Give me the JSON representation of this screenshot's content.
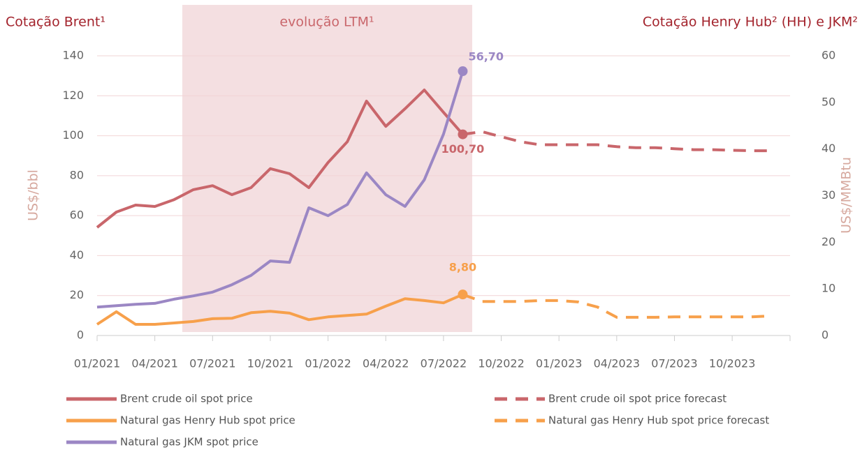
{
  "chart_data": {
    "type": "line",
    "title": "Cotação Brent¹",
    "title_right": "Cotação Henry Hub² (HH) e JKM²",
    "annotation": "evolução LTM¹",
    "y_label": "US$/bbl",
    "y2_label": "US$/MMBtu",
    "categories": [
      "01/2021",
      null,
      null,
      "04/2021",
      null,
      null,
      "07/2021",
      null,
      null,
      "10/2021",
      null,
      null,
      "01/2022",
      null,
      null,
      "04/2022",
      null,
      null,
      "07/2022",
      null,
      null,
      "10/2022",
      null,
      null,
      "01/2023",
      null,
      null,
      "04/2023",
      null,
      null,
      "07/2023",
      null,
      null,
      "10/2023",
      null,
      null
    ],
    "ylim": [
      0,
      140
    ],
    "yticks": [
      0,
      20,
      40,
      60,
      80,
      100,
      120,
      140
    ],
    "y2lim": [
      0,
      60
    ],
    "y2ticks": [
      0,
      10,
      20,
      30,
      40,
      50,
      60
    ],
    "grid": true,
    "series": [
      {
        "name": "Brent crude oil spot price",
        "color": "#c9666b",
        "dashed": false,
        "values": [
          54.1,
          61.8,
          65.3,
          64.6,
          68,
          73,
          75,
          70.5,
          74,
          83.5,
          81,
          74,
          86.6,
          97,
          117.3,
          104.7,
          113.5,
          122.9,
          111.7,
          100.7,
          null,
          null,
          null,
          null,
          null,
          null,
          null,
          null,
          null,
          null,
          null,
          null,
          null,
          null,
          null,
          null
        ],
        "value_labels": [
          null,
          null,
          null,
          null,
          null,
          null,
          null,
          null,
          null,
          null,
          null,
          null,
          null,
          null,
          null,
          null,
          null,
          null,
          null,
          "100,70",
          null,
          null,
          null,
          null,
          null,
          null,
          null,
          null,
          null,
          null,
          null,
          null,
          null,
          null,
          null,
          null
        ]
      },
      {
        "name": "Natural gas Henry Hub spot price",
        "color": "#f7a04b",
        "dashed": false,
        "axis": "y2",
        "values": [
          2.4,
          5.1,
          2.4,
          2.4,
          2.7,
          3.0,
          3.6,
          3.7,
          4.9,
          5.2,
          4.8,
          3.4,
          4.0,
          4.3,
          4.6,
          6.3,
          7.9,
          7.5,
          7.0,
          8.8,
          null,
          null,
          null,
          null,
          null,
          null,
          null,
          null,
          null,
          null,
          null,
          null,
          null,
          null,
          null,
          null
        ],
        "value_labels": [
          null,
          null,
          null,
          null,
          null,
          null,
          null,
          null,
          null,
          null,
          null,
          null,
          null,
          null,
          null,
          null,
          null,
          null,
          null,
          "8,80",
          null,
          null,
          null,
          null,
          null,
          null,
          null,
          null,
          null,
          null,
          null,
          null,
          null,
          null,
          null,
          null
        ]
      },
      {
        "name": "Natural gas JKM spot price",
        "color": "#9b87c4",
        "dashed": false,
        "axis": "y2",
        "values": [
          6.1,
          6.4,
          6.7,
          6.9,
          7.8,
          8.5,
          9.3,
          10.9,
          12.9,
          16.0,
          15.7,
          27.4,
          25.7,
          28.1,
          34.9,
          30.2,
          27.7,
          33.4,
          43.2,
          56.7,
          null,
          null,
          null,
          null,
          null,
          null,
          null,
          null,
          null,
          null,
          null,
          null,
          null,
          null,
          null,
          null
        ],
        "value_labels": [
          null,
          null,
          null,
          null,
          null,
          null,
          null,
          null,
          null,
          null,
          null,
          null,
          null,
          null,
          null,
          null,
          null,
          null,
          null,
          "56,70",
          null,
          null,
          null,
          null,
          null,
          null,
          null,
          null,
          null,
          null,
          null,
          null,
          null,
          null,
          null,
          null
        ]
      },
      {
        "name": "Brent crude oil spot price forecast",
        "color": "#c9666b",
        "dashed": true,
        "values": [
          null,
          null,
          null,
          null,
          null,
          null,
          null,
          null,
          null,
          null,
          null,
          null,
          null,
          null,
          null,
          null,
          null,
          null,
          null,
          100.7,
          102,
          99.5,
          97,
          95.5,
          95.5,
          95.5,
          95.5,
          94.5,
          94,
          94,
          93.5,
          93,
          93,
          92.7,
          92.5,
          92.5
        ]
      },
      {
        "name": "Natural gas Henry Hub spot price forecast",
        "color": "#f7a04b",
        "dashed": true,
        "axis": "y2",
        "values": [
          null,
          null,
          null,
          null,
          null,
          null,
          null,
          null,
          null,
          null,
          null,
          null,
          null,
          null,
          null,
          null,
          null,
          null,
          null,
          8.8,
          7.3,
          7.3,
          7.3,
          7.5,
          7.5,
          7.2,
          6.1,
          3.9,
          3.9,
          3.9,
          4.0,
          4.0,
          4.0,
          4.0,
          4.0,
          4.2
        ]
      }
    ]
  }
}
